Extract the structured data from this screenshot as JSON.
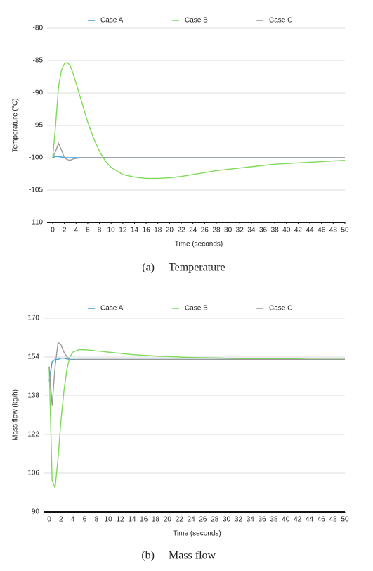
{
  "chart_data": [
    {
      "type": "line",
      "y_label": "Temperature (°C)",
      "x_label": "Time (seconds)",
      "caption_label": "(a)",
      "caption": "Temperature",
      "x": [
        0,
        0.5,
        1,
        1.5,
        2,
        2.5,
        3,
        3.5,
        4,
        5,
        6,
        7,
        8,
        9,
        10,
        12,
        14,
        16,
        18,
        20,
        22,
        24,
        26,
        28,
        30,
        32,
        34,
        36,
        38,
        40,
        42,
        44,
        46,
        48,
        50
      ],
      "series": [
        {
          "name": "Case A",
          "color": "#3aa0d8",
          "values": [
            -100,
            -99.8,
            -99.8,
            -99.9,
            -100,
            -100,
            -100,
            -100,
            -100,
            -100,
            -100,
            -100,
            -100,
            -100,
            -100,
            -100,
            -100,
            -100,
            -100,
            -100,
            -100,
            -100,
            -100,
            -100,
            -100,
            -100,
            -100,
            -100,
            -100,
            -100,
            -100,
            -100,
            -100,
            -100,
            -100
          ]
        },
        {
          "name": "Case B",
          "color": "#7ed957",
          "values": [
            -100,
            -95,
            -89,
            -86.5,
            -85.5,
            -85.3,
            -85.8,
            -87,
            -88.5,
            -91.5,
            -94.5,
            -97,
            -99,
            -100.5,
            -101.5,
            -102.6,
            -103,
            -103.2,
            -103.2,
            -103.1,
            -102.9,
            -102.6,
            -102.3,
            -102,
            -101.8,
            -101.6,
            -101.4,
            -101.2,
            -101,
            -100.9,
            -100.8,
            -100.7,
            -100.6,
            -100.5,
            -100.4
          ]
        },
        {
          "name": "Case C",
          "color": "#999999",
          "values": [
            -100,
            -99,
            -97.8,
            -98.8,
            -100,
            -100.3,
            -100.4,
            -100.2,
            -100.1,
            -100,
            -100,
            -100,
            -100,
            -100,
            -100,
            -100,
            -100,
            -100,
            -100,
            -100,
            -100,
            -100,
            -100,
            -100,
            -100,
            -100,
            -100,
            -100,
            -100,
            -100,
            -100,
            -100,
            -100,
            -100,
            -100
          ]
        }
      ],
      "xlim": [
        0,
        50
      ],
      "xticks": [
        0,
        2,
        4,
        6,
        8,
        10,
        12,
        14,
        16,
        18,
        20,
        22,
        24,
        26,
        28,
        30,
        32,
        34,
        36,
        38,
        40,
        42,
        44,
        46,
        48,
        50
      ],
      "ylim": [
        -110,
        -80
      ],
      "yticks": [
        -110,
        -105,
        -100,
        -95,
        -90,
        -85,
        -80
      ],
      "grid": true
    },
    {
      "type": "line",
      "y_label": "Mass flow (kg/h)",
      "x_label": "Time (seconds)",
      "caption_label": "(b)",
      "caption": "Mass flow",
      "x": [
        0,
        0.5,
        1,
        1.5,
        2,
        2.5,
        3,
        3.5,
        4,
        5,
        6,
        7,
        8,
        9,
        10,
        12,
        14,
        16,
        18,
        20,
        22,
        24,
        26,
        28,
        30,
        32,
        34,
        36,
        38,
        40,
        42,
        44,
        46,
        48,
        50
      ],
      "series": [
        {
          "name": "Case A",
          "color": "#3aa0d8",
          "values": [
            144,
            152,
            153,
            153,
            153.5,
            153.5,
            153.2,
            153,
            153,
            153,
            153,
            153,
            153,
            153,
            153,
            153,
            153,
            153,
            153,
            153,
            153,
            153,
            153,
            153,
            153,
            153,
            153,
            153,
            153,
            153,
            153,
            153,
            153,
            153,
            153
          ]
        },
        {
          "name": "Case B",
          "color": "#7ed957",
          "values": [
            150,
            103,
            100,
            112,
            128,
            140,
            149,
            154,
            156,
            157,
            157,
            156.8,
            156.5,
            156.3,
            156,
            155.5,
            155,
            154.7,
            154.4,
            154.2,
            154,
            153.8,
            153.7,
            153.6,
            153.5,
            153.4,
            153.3,
            153.3,
            153.2,
            153.2,
            153.2,
            153.1,
            153.1,
            153.1,
            153.1
          ]
        },
        {
          "name": "Case C",
          "color": "#999999",
          "values": [
            150,
            134,
            150,
            160,
            159,
            156,
            154,
            153,
            152.7,
            153,
            153,
            153,
            153,
            153,
            153,
            153,
            153,
            153,
            153,
            153,
            153,
            153,
            153,
            153,
            153,
            153,
            153,
            153,
            153,
            153,
            153,
            153,
            153,
            153,
            153
          ]
        }
      ],
      "xlim": [
        0,
        50
      ],
      "xticks": [
        0,
        2,
        4,
        6,
        8,
        10,
        12,
        14,
        16,
        18,
        20,
        22,
        24,
        26,
        28,
        30,
        32,
        34,
        36,
        38,
        40,
        42,
        44,
        46,
        48,
        50
      ],
      "ylim": [
        90,
        170
      ],
      "yticks": [
        90,
        106,
        122,
        138,
        154,
        170
      ],
      "grid": true
    }
  ]
}
